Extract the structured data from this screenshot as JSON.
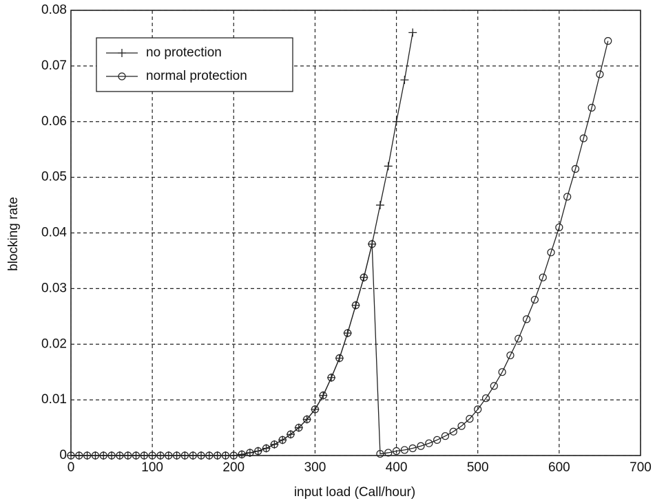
{
  "chart_data": {
    "type": "line",
    "xlabel": "input load (Call/hour)",
    "ylabel": "blocking rate",
    "xlim": [
      0,
      700
    ],
    "ylim": [
      0,
      0.08
    ],
    "xticks": [
      0,
      100,
      200,
      300,
      400,
      500,
      600,
      700
    ],
    "yticks": [
      0,
      0.01,
      0.02,
      0.03,
      0.04,
      0.05,
      0.06,
      0.07,
      0.08
    ],
    "grid": true,
    "legend": "upper left",
    "series": [
      {
        "name": "no protection",
        "color": "#222222",
        "marker": "plus",
        "x": [
          0,
          10,
          20,
          30,
          40,
          50,
          60,
          70,
          80,
          90,
          100,
          110,
          120,
          130,
          140,
          150,
          160,
          170,
          180,
          190,
          200,
          210,
          220,
          230,
          240,
          250,
          260,
          270,
          280,
          290,
          300,
          310,
          320,
          330,
          340,
          350,
          360,
          370,
          380,
          390,
          400,
          410,
          420
        ],
        "values": [
          0,
          0,
          0,
          0,
          0,
          0,
          0,
          0,
          0,
          0,
          0,
          0,
          0,
          0,
          0,
          0,
          0,
          0,
          0,
          0,
          0,
          0.0002,
          0.0005,
          0.0008,
          0.0013,
          0.002,
          0.0028,
          0.0038,
          0.005,
          0.0065,
          0.0083,
          0.0108,
          0.014,
          0.0175,
          0.022,
          0.027,
          0.032,
          0.038,
          0.045,
          0.052,
          0.06,
          0.0675,
          0.076
        ]
      },
      {
        "name": "normal protection",
        "color": "#222222",
        "marker": "circle",
        "x": [
          0,
          10,
          20,
          30,
          40,
          50,
          60,
          70,
          80,
          90,
          100,
          110,
          120,
          130,
          140,
          150,
          160,
          170,
          180,
          190,
          200,
          210,
          220,
          230,
          240,
          250,
          260,
          270,
          280,
          290,
          300,
          310,
          320,
          330,
          340,
          350,
          360,
          370,
          380,
          390,
          400,
          410,
          420,
          430,
          440,
          450,
          460,
          470,
          480,
          490,
          500,
          510,
          520,
          530,
          540,
          550,
          560,
          570,
          580,
          590,
          600,
          610,
          620,
          630,
          640,
          650,
          660
        ],
        "values": [
          0,
          0,
          0,
          0,
          0,
          0,
          0,
          0,
          0,
          0,
          0,
          0,
          0,
          0,
          0,
          0,
          0,
          0,
          0,
          0,
          0,
          0.0002,
          0.0005,
          0.0008,
          0.0013,
          0.002,
          0.0028,
          0.0038,
          0.005,
          0.0065,
          0.0083,
          0.0108,
          0.014,
          0.0175,
          0.022,
          0.027,
          0.032,
          0.038,
          0.0003,
          0.0005,
          0.0008,
          0.001,
          0.0013,
          0.0017,
          0.0022,
          0.0028,
          0.0035,
          0.0043,
          0.0053,
          0.0066,
          0.0083,
          0.0103,
          0.0125,
          0.015,
          0.018,
          0.021,
          0.0245,
          0.028,
          0.032,
          0.0365,
          0.041,
          0.0465,
          0.0515,
          0.057,
          0.0625,
          0.0685,
          0.0745
        ]
      }
    ]
  }
}
